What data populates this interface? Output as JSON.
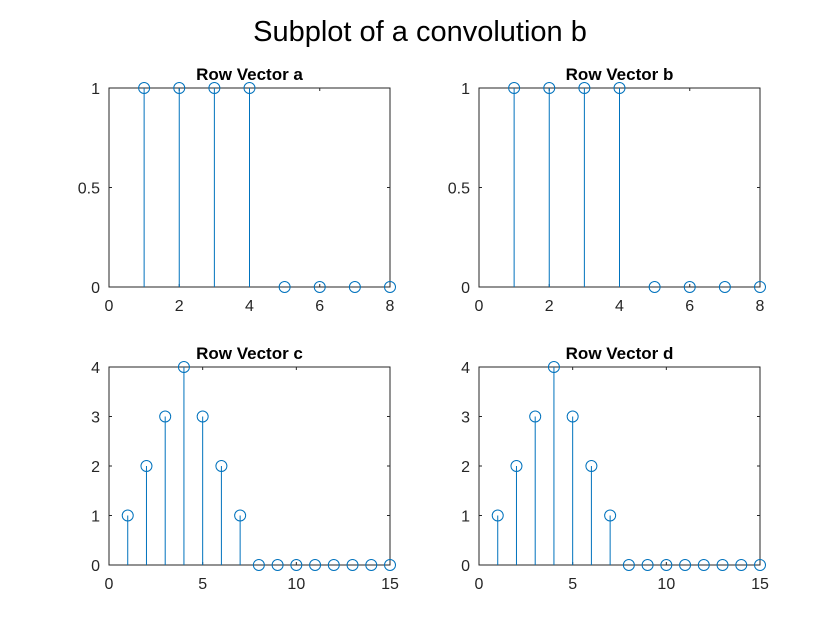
{
  "figure": {
    "title": "Subplot of a convolution b"
  },
  "colors": {
    "stem": "#0072BD",
    "axes": "#262626",
    "background": "#ffffff"
  },
  "chart_data": [
    {
      "type": "stem",
      "title": "Row Vector a",
      "xlabel": "",
      "ylabel": "",
      "x": [
        1,
        2,
        3,
        4,
        5,
        6,
        7,
        8
      ],
      "values": [
        1,
        1,
        1,
        1,
        0,
        0,
        0,
        0
      ],
      "xlim": [
        0,
        8
      ],
      "ylim": [
        0,
        1
      ],
      "xticks": [
        0,
        2,
        4,
        6,
        8
      ],
      "yticks": [
        0,
        0.5,
        1
      ],
      "xtick_labels": [
        "0",
        "2",
        "4",
        "6",
        "8"
      ],
      "ytick_labels": [
        "0",
        "0.5",
        "1"
      ],
      "grid": false,
      "marker": "open-circle"
    },
    {
      "type": "stem",
      "title": "Row Vector b",
      "xlabel": "",
      "ylabel": "",
      "x": [
        1,
        2,
        3,
        4,
        5,
        6,
        7,
        8
      ],
      "values": [
        1,
        1,
        1,
        1,
        0,
        0,
        0,
        0
      ],
      "xlim": [
        0,
        8
      ],
      "ylim": [
        0,
        1
      ],
      "xticks": [
        0,
        2,
        4,
        6,
        8
      ],
      "yticks": [
        0,
        0.5,
        1
      ],
      "xtick_labels": [
        "0",
        "2",
        "4",
        "6",
        "8"
      ],
      "ytick_labels": [
        "0",
        "0.5",
        "1"
      ],
      "grid": false,
      "marker": "open-circle"
    },
    {
      "type": "stem",
      "title": "Row Vector c",
      "xlabel": "",
      "ylabel": "",
      "x": [
        1,
        2,
        3,
        4,
        5,
        6,
        7,
        8,
        9,
        10,
        11,
        12,
        13,
        14,
        15
      ],
      "values": [
        1,
        2,
        3,
        4,
        3,
        2,
        1,
        0,
        0,
        0,
        0,
        0,
        0,
        0,
        0
      ],
      "xlim": [
        0,
        15
      ],
      "ylim": [
        0,
        4
      ],
      "xticks": [
        0,
        5,
        10,
        15
      ],
      "yticks": [
        0,
        1,
        2,
        3,
        4
      ],
      "xtick_labels": [
        "0",
        "5",
        "10",
        "15"
      ],
      "ytick_labels": [
        "0",
        "1",
        "2",
        "3",
        "4"
      ],
      "grid": false,
      "marker": "open-circle"
    },
    {
      "type": "stem",
      "title": "Row Vector d",
      "xlabel": "",
      "ylabel": "",
      "x": [
        1,
        2,
        3,
        4,
        5,
        6,
        7,
        8,
        9,
        10,
        11,
        12,
        13,
        14,
        15
      ],
      "values": [
        1,
        2,
        3,
        4,
        3,
        2,
        1,
        0,
        0,
        0,
        0,
        0,
        0,
        0,
        0
      ],
      "xlim": [
        0,
        15
      ],
      "ylim": [
        0,
        4
      ],
      "xticks": [
        0,
        5,
        10,
        15
      ],
      "yticks": [
        0,
        1,
        2,
        3,
        4
      ],
      "xtick_labels": [
        "0",
        "5",
        "10",
        "15"
      ],
      "ytick_labels": [
        "0",
        "1",
        "2",
        "3",
        "4"
      ],
      "grid": false,
      "marker": "open-circle"
    }
  ]
}
